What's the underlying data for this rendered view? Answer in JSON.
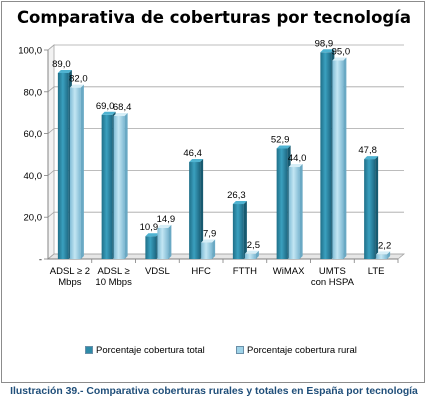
{
  "chart_data": {
    "type": "bar",
    "title": "Comparativa de coberturas por tecnología",
    "categories": [
      [
        "ADSL ≥ 2",
        "Mbps"
      ],
      [
        "ADSL ≥",
        "10 Mbps"
      ],
      [
        "VDSL"
      ],
      [
        "HFC"
      ],
      [
        "FTTH"
      ],
      [
        "WiMAX"
      ],
      [
        "UMTS",
        "con HSPA"
      ],
      [
        "LTE"
      ]
    ],
    "series": [
      {
        "name": "Porcentaje cobertura total",
        "values": [
          89.0,
          69.0,
          10.9,
          46.4,
          26.3,
          52.9,
          98.9,
          47.8
        ],
        "labels": [
          "89,0",
          "69,0",
          "10,9",
          "46,4",
          "26,3",
          "52,9",
          "98,9",
          "47,8"
        ],
        "color": "#2e8ba8"
      },
      {
        "name": "Porcentaje cobertura rural",
        "values": [
          82.0,
          68.4,
          14.9,
          7.9,
          2.5,
          44.0,
          95.0,
          2.2
        ],
        "labels": [
          "82,0",
          "68,4",
          "14,9",
          "7,9",
          "2,5",
          "44,0",
          "95,0",
          "2,2"
        ],
        "color": "#9fd3e8"
      }
    ],
    "yticks": [
      "-",
      "20,0",
      "40,0",
      "60,0",
      "80,0",
      "100,0"
    ],
    "ylim": [
      0,
      100
    ],
    "grid": true,
    "legend_position": "bottom"
  },
  "caption": "Ilustración 39.- Comparativa coberturas rurales y totales en España por tecnología"
}
